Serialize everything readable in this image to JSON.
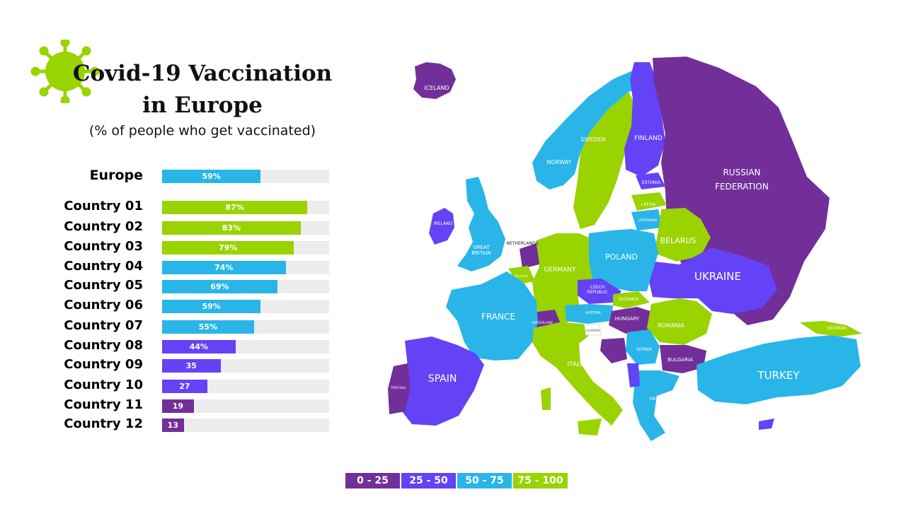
{
  "title_line1": "Covid-19 Vaccination",
  "title_line2": "in Europe",
  "subtitle": "(% of people who get vaccinated)",
  "colors": {
    "range_0_25": "#722f9a",
    "range_25_50": "#6442f5",
    "range_50_75": "#29b5e8",
    "range_75_100": "#99d300",
    "track": "#ececec",
    "virus": "#99d300"
  },
  "icons": {
    "virus": "virus-icon"
  },
  "chart_data": {
    "type": "bar",
    "orientation": "horizontal",
    "xlim": [
      0,
      100
    ],
    "categories": [
      "Europe",
      "Country 01",
      "Country 02",
      "Country 03",
      "Country 04",
      "Country 05",
      "Country 06",
      "Country 07",
      "Country 08",
      "Country 09",
      "Country 10",
      "Country 11",
      "Country 12"
    ],
    "values": [
      59,
      87,
      83,
      79,
      74,
      69,
      59,
      55,
      44,
      35,
      27,
      19,
      13
    ],
    "data_labels": [
      "59%",
      "87%",
      "83%",
      "79%",
      "74%",
      "69%",
      "59%",
      "55%",
      "44%",
      "35",
      "27",
      "19",
      "13"
    ]
  },
  "map": {
    "labels": {
      "iceland": "ICELAND",
      "norway": "NORWAY",
      "sweden": "SWEDEN",
      "finland": "FINLAND",
      "russia_1": "RUSSIAN",
      "russia_2": "FEDERATION",
      "estonia": "ESTONIA",
      "latvia": "LATVIA",
      "lithuania": "LITHUANIA",
      "belarus": "BELARUS",
      "ireland": "IRELAND",
      "britain_1": "GREAT",
      "britain_2": "BRITAIN",
      "netherlands": "NETHERLANDS",
      "belgium": "BELGIUM",
      "germany": "GERMANY",
      "poland": "POLAND",
      "ukraine": "UKRAINE",
      "czech_1": "CZECH",
      "czech_2": "REPUBLIC",
      "slovakia": "SLOVAKIA",
      "austria": "AUSTRIA",
      "france": "FRANCE",
      "switzerland": "SWITZERLAND",
      "hungary": "HUNGARY",
      "romania": "ROMANIA",
      "slovenia": "SLOVENIA",
      "serbia": "SERBIA",
      "bulgaria": "BULGARIA",
      "italy": "ITALY",
      "spain": "SPAIN",
      "portugal": "PORTUGAL",
      "greece": "GREECE",
      "turkey": "TURKEY",
      "georgia": "GEORGIA"
    }
  },
  "legend": [
    "0 - 25",
    "25 - 50",
    "50 - 75",
    "75 - 100"
  ]
}
